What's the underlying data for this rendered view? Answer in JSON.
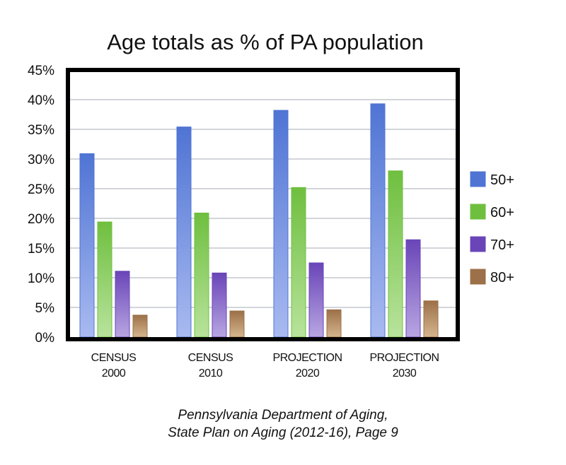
{
  "chart_data": {
    "type": "bar",
    "title": "Age totals as % of PA population",
    "xlabel": "",
    "ylabel": "",
    "ylim": [
      0,
      45
    ],
    "yticks": [
      "0%",
      "5%",
      "10%",
      "15%",
      "20%",
      "25%",
      "30%",
      "35%",
      "40%",
      "45%"
    ],
    "ytick_values": [
      0,
      5,
      10,
      15,
      20,
      25,
      30,
      35,
      40,
      45
    ],
    "grid": true,
    "legend_position": "right",
    "categories": [
      {
        "line1": "CENSUS",
        "line2": "2000"
      },
      {
        "line1": "CENSUS",
        "line2": "2010"
      },
      {
        "line1": "PROJECTION",
        "line2": "2020"
      },
      {
        "line1": "PROJECTION",
        "line2": "2030"
      }
    ],
    "series": [
      {
        "name": "50+",
        "color": "#4f74d4",
        "color_light": "#a9baf0",
        "values": [
          30.9,
          35.4,
          38.2,
          39.3
        ]
      },
      {
        "name": "60+",
        "color": "#6fbf3f",
        "color_light": "#b8e39c",
        "values": [
          19.4,
          20.9,
          25.2,
          28.0
        ]
      },
      {
        "name": "70+",
        "color": "#6a45b8",
        "color_light": "#b8a6e2",
        "values": [
          11.1,
          10.8,
          12.5,
          16.4
        ]
      },
      {
        "name": "80+",
        "color": "#9c7048",
        "color_light": "#d5b58e",
        "values": [
          3.7,
          4.4,
          4.6,
          6.1
        ]
      }
    ]
  },
  "source": {
    "line1": "Pennsylvania Department of Aging,",
    "line2": "State Plan on Aging (2012-16), Page 9"
  }
}
